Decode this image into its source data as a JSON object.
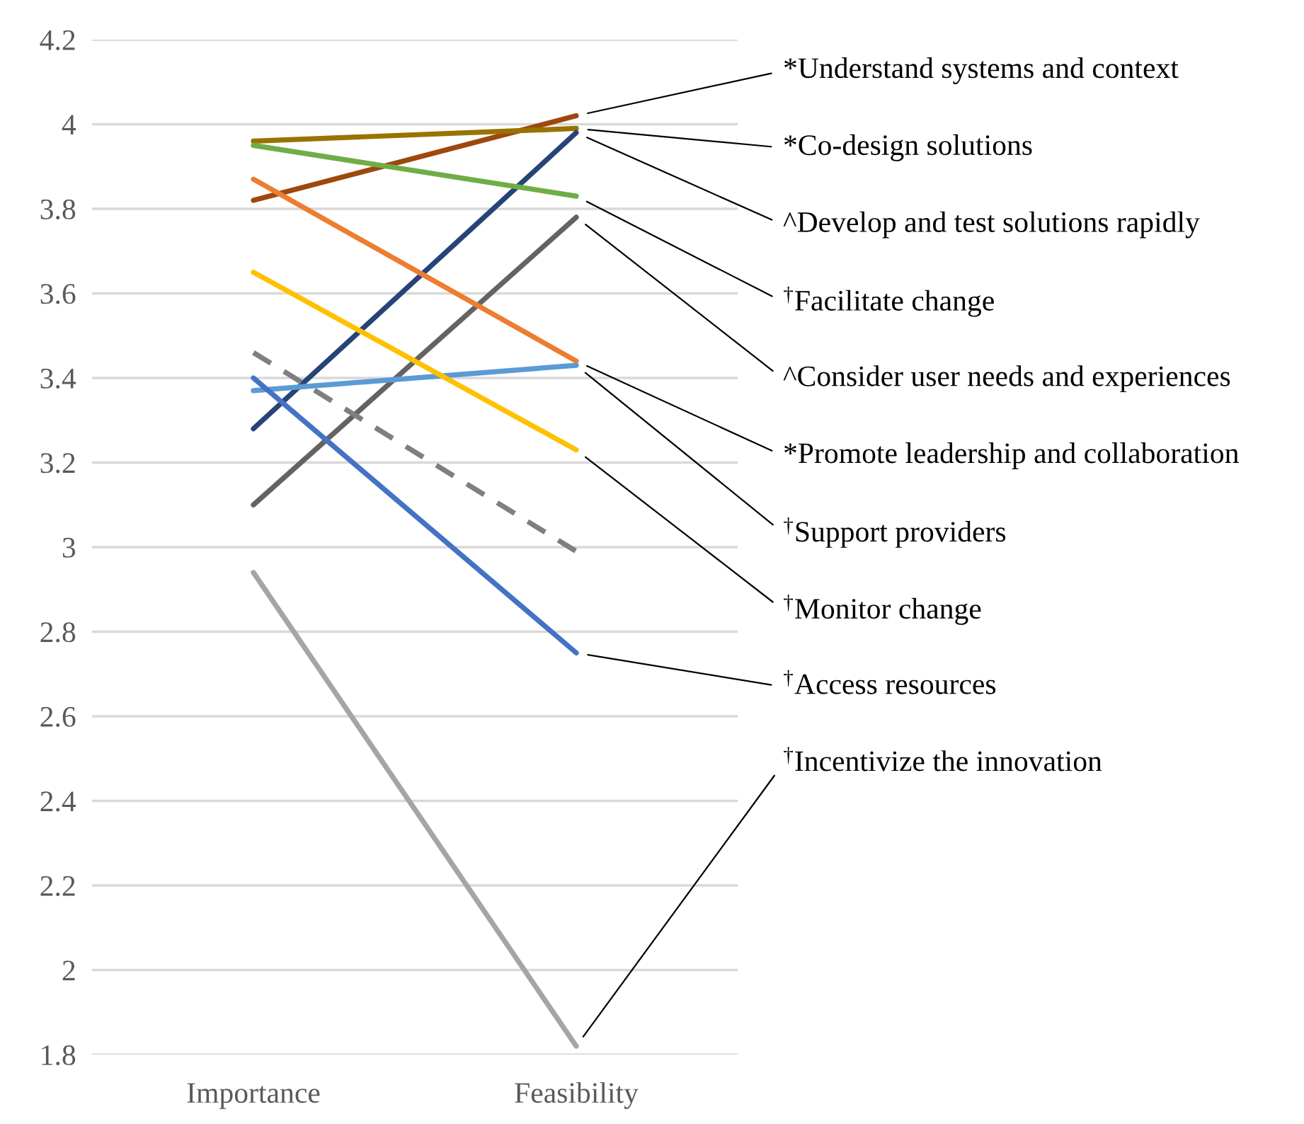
{
  "chart_data": {
    "type": "line",
    "categories": [
      "Importance",
      "Feasibility"
    ],
    "ylim": [
      1.8,
      4.2
    ],
    "yticks": [
      1.8,
      2,
      2.2,
      2.4,
      2.6,
      2.8,
      3,
      3.2,
      3.4,
      3.6,
      3.8,
      4,
      4.2
    ],
    "grid": "y",
    "legend": false,
    "marker": "none",
    "line_style": "solid",
    "series": [
      {
        "name": "*Understand systems and context",
        "color": "#9e480e",
        "values": [
          3.82,
          4.02
        ]
      },
      {
        "name": "*Co-design solutions",
        "color": "#997300",
        "values": [
          3.96,
          3.99
        ]
      },
      {
        "name": "^Develop and test solutions rapidly",
        "color": "#264478",
        "values": [
          3.28,
          3.98
        ]
      },
      {
        "name": "$^{†}$Facilitate change",
        "color": "#70ad47",
        "values": [
          3.95,
          3.83
        ]
      },
      {
        "name": "^Consider user needs and experiences",
        "color": "#636363",
        "values": [
          3.1,
          3.78
        ]
      },
      {
        "name": "*Promote leadership and collaboration",
        "color": "#ed7d31",
        "values": [
          3.87,
          3.44
        ]
      },
      {
        "name": "$^{†}$Support providers",
        "color": "#5b9bd5",
        "values": [
          3.37,
          3.43
        ]
      },
      {
        "name": "$^{†}$Monitor change",
        "color": "#ffc000",
        "values": [
          3.65,
          3.23
        ]
      },
      {
        "name": "$^{†}$Access resources",
        "color": "#4472c4",
        "values": [
          3.4,
          2.75
        ]
      },
      {
        "name": "$^{†}$Incentivize the innovation",
        "color": "#a5a5a5",
        "values": [
          2.94,
          1.82
        ]
      },
      {
        "color": "#7f7f7f",
        "values": [
          3.46,
          2.99
        ],
        "line_style": "dashed"
      }
    ]
  }
}
